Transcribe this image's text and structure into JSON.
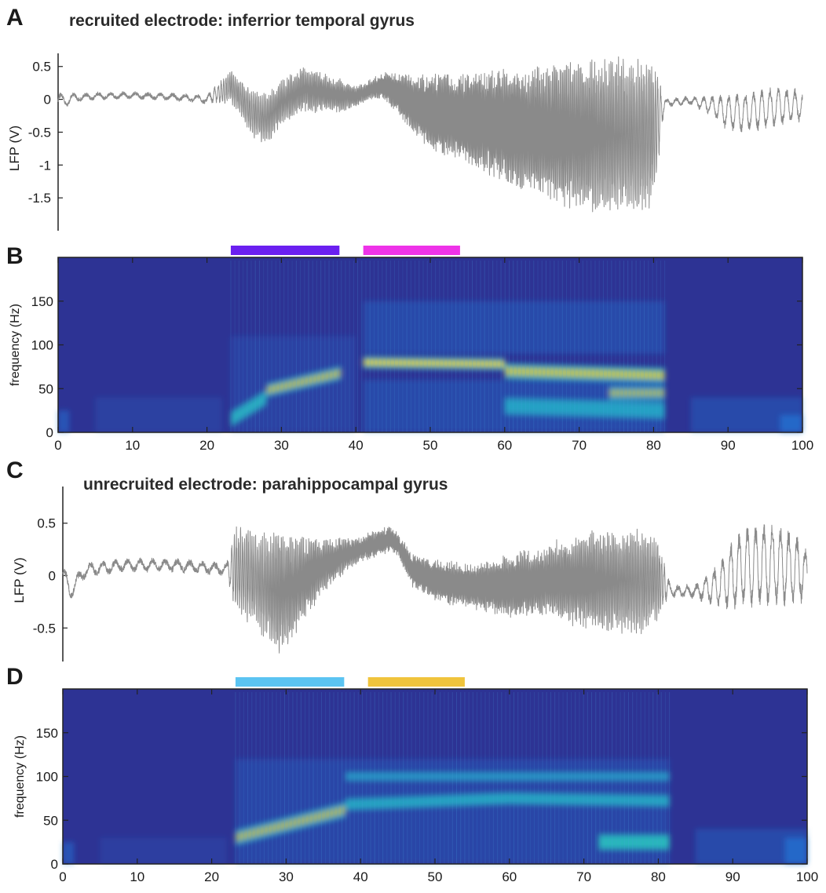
{
  "figure": {
    "colors": {
      "trace": "#8a8a8a",
      "axis": "#222222",
      "spec_low": "#2d3394",
      "spec_mid": "#1f78d8",
      "spec_high": "#28c7c0",
      "spec_peak": "#f2d23a"
    },
    "panels": [
      {
        "letter": "A",
        "title": "recruited electrode: inferrior temporal gyrus"
      },
      {
        "letter": "B",
        "title": ""
      },
      {
        "letter": "C",
        "title": "unrecruited electrode: parahippocampal gyrus"
      },
      {
        "letter": "D",
        "title": ""
      }
    ]
  },
  "chart_data": [
    {
      "id": "A",
      "type": "line",
      "title": "recruited electrode: inferrior temporal gyrus",
      "ylabel": "LFP (V)",
      "xlabel": "",
      "xlim": [
        0,
        100
      ],
      "ylim": [
        -2.0,
        0.7
      ],
      "yticks": [
        0.5,
        0,
        -0.5,
        -1,
        -1.5
      ],
      "ytick_labels": [
        "0.5",
        "0",
        "-0.5",
        "-1",
        "-1.5"
      ],
      "series": [
        {
          "color": "#8a8a8a",
          "envelope": {
            "x": [
              0,
              2,
              5,
              10,
              15,
              20,
              23.2,
              24,
              26,
              28,
              30,
              33,
              36,
              38,
              40,
              42,
              44,
              46,
              48,
              50,
              55,
              60,
              65,
              70,
              75,
              78,
              80,
              81.5,
              82,
              85,
              88,
              90,
              92,
              95,
              97,
              99,
              100
            ],
            "baseline": [
              -0.05,
              0.02,
              0.05,
              0.06,
              0.04,
              0.0,
              0.2,
              0.1,
              -0.2,
              -0.3,
              -0.05,
              0.15,
              0.1,
              0.05,
              0.05,
              0.15,
              0.2,
              0.05,
              -0.1,
              -0.2,
              -0.3,
              -0.4,
              -0.5,
              -0.55,
              -0.55,
              -0.55,
              -0.5,
              -0.05,
              -0.05,
              -0.02,
              -0.1,
              -0.2,
              -0.2,
              -0.15,
              -0.1,
              -0.1,
              -0.1
            ],
            "amplitude": [
              0.15,
              0.06,
              0.04,
              0.04,
              0.04,
              0.05,
              0.25,
              0.25,
              0.35,
              0.4,
              0.35,
              0.35,
              0.28,
              0.25,
              0.15,
              0.15,
              0.2,
              0.35,
              0.45,
              0.6,
              0.7,
              0.9,
              1.05,
              1.15,
              1.2,
              1.2,
              1.1,
              0.05,
              0.05,
              0.05,
              0.15,
              0.28,
              0.3,
              0.32,
              0.3,
              0.25,
              0.2
            ],
            "cycles_per_unit": [
              0.6,
              0.6,
              0.6,
              0.6,
              0.6,
              0.6,
              4.2,
              4.2,
              4.0,
              4.5,
              5.0,
              5.2,
              5.6,
              5.6,
              6.0,
              6.4,
              7.0,
              7.0,
              7.0,
              7.0,
              7.0,
              6.6,
              6.0,
              5.6,
              4.8,
              4.4,
              4.2,
              0.8,
              0.8,
              0.8,
              0.9,
              0.9,
              0.9,
              0.9,
              0.9,
              0.9,
              0.9
            ]
          }
        }
      ]
    },
    {
      "id": "B",
      "type": "heatmap",
      "title": "",
      "ylabel": "frequency (Hz)",
      "xlabel": "",
      "xlim": [
        0,
        100
      ],
      "ylim": [
        0,
        200
      ],
      "xticks": [
        0,
        10,
        20,
        30,
        40,
        50,
        60,
        70,
        80,
        90,
        100
      ],
      "xtick_labels": [
        "0",
        "10",
        "20",
        "30",
        "40",
        "50",
        "60",
        "70",
        "80",
        "90",
        "100"
      ],
      "yticks": [
        0,
        50,
        100,
        150
      ],
      "ytick_labels": [
        "0",
        "50",
        "100",
        "150"
      ],
      "epoch_bars": [
        {
          "x": [
            23.2,
            37.8
          ],
          "color": "#6a1ff0"
        },
        {
          "x": [
            41,
            54
          ],
          "color": "#ee33e8"
        }
      ],
      "bands": [
        {
          "x": [
            0,
            1.5
          ],
          "f": [
            0,
            25
          ],
          "level": 0.45
        },
        {
          "x": [
            5,
            22
          ],
          "f": [
            0,
            40
          ],
          "level": 0.18
        },
        {
          "x": [
            23.2,
            28
          ],
          "f_center": [
            15,
            40
          ],
          "width": 18,
          "level": 0.65
        },
        {
          "x": [
            28,
            38
          ],
          "f_center": [
            48,
            68
          ],
          "width": 16,
          "level": 0.8
        },
        {
          "x": [
            23.2,
            40
          ],
          "f": [
            0,
            110
          ],
          "level": 0.2
        },
        {
          "x": [
            41,
            60
          ],
          "f_center": [
            80,
            78
          ],
          "width": 14,
          "level": 0.8
        },
        {
          "x": [
            60,
            81.5
          ],
          "f_center": [
            70,
            65
          ],
          "width": 18,
          "level": 0.7
        },
        {
          "x": [
            74,
            81.5
          ],
          "f_center": [
            45,
            45
          ],
          "width": 16,
          "level": 0.85
        },
        {
          "x": [
            60,
            81.5
          ],
          "f_center": [
            30,
            25
          ],
          "width": 20,
          "level": 0.55
        },
        {
          "x": [
            41,
            81.5
          ],
          "f": [
            90,
            150
          ],
          "level": 0.3
        },
        {
          "x": [
            41,
            81.5
          ],
          "f": [
            0,
            60
          ],
          "level": 0.3
        },
        {
          "x": [
            85,
            100
          ],
          "f": [
            0,
            40
          ],
          "level": 0.3
        },
        {
          "x": [
            97,
            100
          ],
          "f": [
            0,
            20
          ],
          "level": 0.6
        }
      ]
    },
    {
      "id": "C",
      "type": "line",
      "title": "unrecruited electrode: parahippocampal gyrus",
      "ylabel": "LFP (V)",
      "xlabel": "",
      "xlim": [
        0,
        100
      ],
      "ylim": [
        -0.82,
        0.85
      ],
      "yticks": [
        0.5,
        0,
        -0.5
      ],
      "ytick_labels": [
        "0.5",
        "0",
        "-0.5"
      ],
      "series": [
        {
          "color": "#8a8a8a",
          "envelope": {
            "x": [
              0,
              1,
              3,
              8,
              15,
              22,
              23.2,
              25,
              27,
              29,
              31,
              33,
              35,
              38,
              40,
              42,
              44,
              45,
              47,
              50,
              55,
              60,
              65,
              70,
              75,
              78,
              80,
              81.5,
              82,
              85,
              88,
              90,
              92,
              95,
              97,
              99,
              100
            ],
            "baseline": [
              0.0,
              -0.15,
              0.05,
              0.1,
              0.1,
              0.06,
              0.05,
              0.0,
              -0.1,
              -0.15,
              -0.1,
              0.0,
              0.1,
              0.2,
              0.25,
              0.3,
              0.35,
              0.3,
              0.05,
              -0.05,
              -0.1,
              -0.1,
              -0.05,
              -0.05,
              -0.05,
              -0.05,
              -0.05,
              -0.12,
              -0.15,
              -0.15,
              -0.1,
              0.0,
              0.1,
              0.1,
              0.1,
              0.05,
              0.0
            ],
            "amplitude": [
              0.1,
              0.08,
              0.06,
              0.05,
              0.05,
              0.05,
              0.4,
              0.45,
              0.5,
              0.6,
              0.5,
              0.35,
              0.25,
              0.15,
              0.12,
              0.12,
              0.12,
              0.1,
              0.15,
              0.2,
              0.2,
              0.3,
              0.35,
              0.45,
              0.5,
              0.5,
              0.4,
              0.05,
              0.05,
              0.05,
              0.2,
              0.35,
              0.4,
              0.4,
              0.4,
              0.3,
              0.25
            ],
            "cycles_per_unit": [
              0.6,
              0.6,
              0.6,
              0.6,
              0.6,
              0.6,
              3.6,
              4.0,
              4.4,
              5.0,
              5.4,
              5.8,
              6.0,
              6.2,
              6.4,
              6.8,
              7.0,
              7.0,
              7.0,
              7.0,
              7.0,
              6.6,
              6.0,
              5.6,
              4.8,
              4.4,
              4.2,
              0.8,
              0.8,
              0.8,
              0.9,
              0.9,
              0.9,
              0.9,
              0.9,
              0.9,
              0.9
            ]
          }
        }
      ]
    },
    {
      "id": "D",
      "type": "heatmap",
      "title": "",
      "ylabel": "frequency (Hz)",
      "xlabel": "",
      "xlim": [
        0,
        100
      ],
      "ylim": [
        0,
        200
      ],
      "xticks": [
        0,
        10,
        20,
        30,
        40,
        50,
        60,
        70,
        80,
        90,
        100
      ],
      "xtick_labels": [
        "0",
        "10",
        "20",
        "30",
        "40",
        "50",
        "60",
        "70",
        "80",
        "90",
        "100"
      ],
      "yticks": [
        0,
        50,
        100,
        150
      ],
      "ytick_labels": [
        "0",
        "50",
        "100",
        "150"
      ],
      "epoch_bars": [
        {
          "x": [
            23.2,
            37.8
          ],
          "color": "#5bc4f2"
        },
        {
          "x": [
            41,
            54
          ],
          "color": "#f0c43c"
        }
      ],
      "bands": [
        {
          "x": [
            0,
            1.5
          ],
          "f": [
            0,
            25
          ],
          "level": 0.45
        },
        {
          "x": [
            5,
            22
          ],
          "f": [
            0,
            30
          ],
          "level": 0.15
        },
        {
          "x": [
            23.2,
            38
          ],
          "f_center": [
            30,
            62
          ],
          "width": 18,
          "level": 0.8
        },
        {
          "x": [
            38,
            60
          ],
          "f_center": [
            68,
            75
          ],
          "width": 14,
          "level": 0.5
        },
        {
          "x": [
            60,
            81.5
          ],
          "f_center": [
            75,
            72
          ],
          "width": 14,
          "level": 0.45
        },
        {
          "x": [
            38,
            81.5
          ],
          "f_center": [
            100,
            100
          ],
          "width": 10,
          "level": 0.3
        },
        {
          "x": [
            23.2,
            81.5
          ],
          "f": [
            0,
            120
          ],
          "level": 0.25
        },
        {
          "x": [
            72,
            81.5
          ],
          "f_center": [
            25,
            25
          ],
          "width": 18,
          "level": 0.55
        },
        {
          "x": [
            85,
            100
          ],
          "f": [
            0,
            40
          ],
          "level": 0.3
        },
        {
          "x": [
            97,
            100
          ],
          "f": [
            0,
            30
          ],
          "level": 0.6
        }
      ]
    }
  ]
}
